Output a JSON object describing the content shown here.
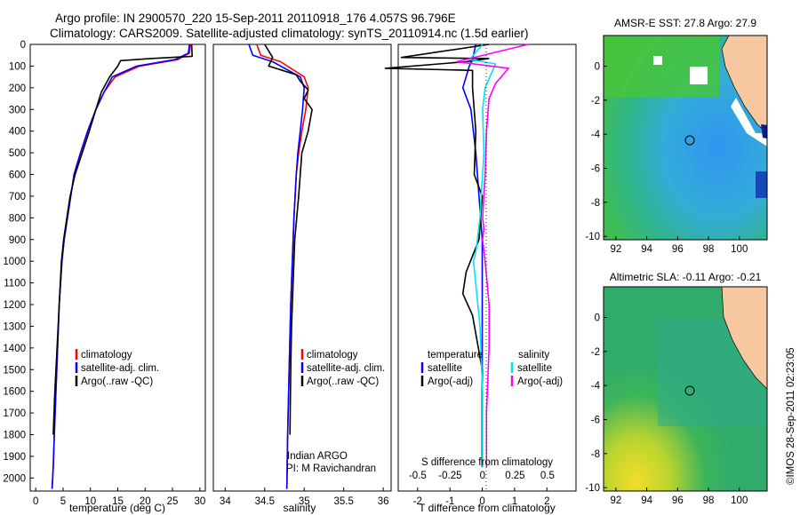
{
  "header": {
    "line1": "Argo profile: IN 2900570_220 15-Sep-2011 20110918_176 4.057S 96.796E",
    "line2": "Climatology: CARS2009. Satellite-adjusted climatology: synTS_20110914.nc (1.5d earlier)"
  },
  "colors": {
    "climatology": "#ff0000",
    "satellite": "#0000ff",
    "argo": "#000000",
    "sat_salinity": "#00e5ee",
    "argo_salinity": "#ff00ff",
    "land": "#f7c8a0"
  },
  "stamp": "©IMOS 28-Sep-2011 02:23:05",
  "shared_y": {
    "ticks": [
      "0",
      "100",
      "200",
      "300",
      "400",
      "500",
      "600",
      "700",
      "800",
      "900",
      "1000",
      "1100",
      "1200",
      "1300",
      "1400",
      "1500",
      "1600",
      "1700",
      "1800",
      "1900",
      "2000"
    ]
  },
  "panels": {
    "temperature": {
      "xlabel": "temperature (deg C)",
      "xticks": [
        "0",
        "5",
        "10",
        "15",
        "20",
        "25",
        "30"
      ],
      "legend": [
        "climatology",
        "satellite-adj. clim.",
        "Argo(..raw -QC)"
      ]
    },
    "salinity": {
      "xlabel": "salinity",
      "xticks": [
        "34",
        "34.5",
        "35",
        "35.5",
        "36"
      ],
      "legend": [
        "climatology",
        "satellite-adj. clim.",
        "Argo(..raw -QC)"
      ],
      "note1": "Indian ARGO",
      "note2": "PI: M Ravichandran"
    },
    "difference": {
      "xlabel": "T difference from climatology",
      "xticks": [
        "-2",
        "-1",
        "0",
        "1",
        "2"
      ],
      "top_label": "S difference from climatology",
      "top_ticks": [
        "-0.5",
        "-0.25",
        "0",
        "0.25",
        "0.5"
      ],
      "legend_heads": [
        "temperature",
        "salinity"
      ],
      "legend_left": [
        "satellite",
        "Argo(-adj)"
      ],
      "legend_right": [
        "satellite",
        "Argo(-adj)"
      ]
    },
    "sst_map": {
      "title": "AMSR-E SST: 27.8 Argo: 27.9",
      "xticks": [
        "92",
        "94",
        "96",
        "98",
        "100"
      ],
      "yticks": [
        "0",
        "-2",
        "-4",
        "-6",
        "-8",
        "-10"
      ]
    },
    "sla_map": {
      "title": "Altimetric SLA: -0.11 Argo: -0.21",
      "xticks": [
        "92",
        "94",
        "96",
        "98",
        "100"
      ],
      "yticks": [
        "0",
        "-2",
        "-4",
        "-6",
        "-8",
        "-10"
      ]
    }
  },
  "chart_data": [
    {
      "type": "line",
      "xlabel": "temperature (deg C)",
      "ylabel": "",
      "xlim": [
        -1,
        31
      ],
      "ylim": [
        2060,
        0
      ],
      "y_reversed": true,
      "series": [
        {
          "name": "climatology",
          "x": [
            28.3,
            28.1,
            26,
            19,
            14.5,
            12.5,
            11,
            9.5,
            8.2,
            7,
            6.4,
            5.8,
            5.2,
            4.8,
            4.3,
            4,
            3.7,
            3.4,
            3.2,
            3
          ],
          "y": [
            0,
            40,
            70,
            100,
            150,
            220,
            300,
            400,
            500,
            600,
            700,
            800,
            900,
            1000,
            1200,
            1400,
            1600,
            1800,
            1950,
            2050
          ]
        },
        {
          "name": "satellite-adj. clim.",
          "x": [
            28.1,
            27.9,
            25.5,
            18.5,
            14,
            12.5,
            11,
            9.5,
            8.2,
            7,
            6.4,
            5.8,
            5.2,
            4.8,
            4.3,
            4,
            3.7,
            3.4,
            3.2,
            3
          ],
          "y": [
            0,
            40,
            70,
            100,
            150,
            220,
            300,
            400,
            500,
            600,
            700,
            800,
            900,
            1000,
            1200,
            1400,
            1600,
            1800,
            1950,
            2050
          ]
        },
        {
          "name": "Argo(..raw -QC)",
          "x": [
            28.5,
            28.6,
            21,
            15.5,
            15,
            13.5,
            12,
            11,
            9.8,
            8.5,
            7.2,
            6.3,
            5.7,
            5.1,
            4.7,
            4.3,
            3.9,
            3.5,
            3.2
          ],
          "y": [
            0,
            55,
            65,
            75,
            100,
            150,
            220,
            300,
            400,
            500,
            600,
            700,
            800,
            900,
            1000,
            1200,
            1400,
            1600,
            1800
          ]
        }
      ]
    },
    {
      "type": "line",
      "xlabel": "salinity",
      "ylabel": "",
      "xlim": [
        33.85,
        36.1
      ],
      "ylim": [
        2060,
        0
      ],
      "y_reversed": true,
      "series": [
        {
          "name": "climatology",
          "x": [
            34.4,
            34.45,
            34.7,
            35,
            35.05,
            35.02,
            34.97,
            34.93,
            34.9,
            34.87,
            34.85,
            34.83,
            34.81,
            34.79,
            34.78
          ],
          "y": [
            0,
            50,
            80,
            150,
            200,
            300,
            400,
            500,
            600,
            800,
            1000,
            1200,
            1500,
            1800,
            2050
          ]
        },
        {
          "name": "satellite-adj. clim.",
          "x": [
            34.3,
            34.35,
            34.6,
            34.95,
            35,
            34.98,
            34.95,
            34.92,
            34.9,
            34.87,
            34.85,
            34.83,
            34.81,
            34.79,
            34.78
          ],
          "y": [
            0,
            50,
            80,
            150,
            200,
            300,
            400,
            500,
            600,
            800,
            1000,
            1200,
            1500,
            1800,
            2050
          ]
        },
        {
          "name": "Argo(..raw -QC)",
          "x": [
            34.5,
            34.6,
            34.55,
            34.9,
            34.95,
            35.05,
            35,
            35.1,
            35.05,
            34.97,
            34.93,
            34.88,
            34.86,
            34.84,
            34.83,
            34.82
          ],
          "y": [
            0,
            60,
            100,
            140,
            170,
            210,
            250,
            300,
            400,
            500,
            700,
            900,
            1100,
            1300,
            1500,
            1800
          ]
        }
      ]
    },
    {
      "type": "line",
      "xlabel": "T difference from climatology",
      "ylabel": "",
      "xlim": [
        -2.6,
        2.9
      ],
      "ylim": [
        2060,
        0
      ],
      "y_reversed": true,
      "series": [
        {
          "name": "temperature satellite",
          "x": [
            -0.2,
            -0.3,
            -0.4,
            -0.6,
            -0.35,
            -0.2,
            -0.1,
            0,
            0,
            0,
            0
          ],
          "y": [
            0,
            70,
            100,
            200,
            300,
            500,
            700,
            900,
            1200,
            1600,
            1950
          ]
        },
        {
          "name": "temperature Argo(-adj)",
          "x": [
            0.2,
            -2.5,
            0.2,
            -0.5,
            -3,
            -0.3,
            -0.3,
            -0.2,
            -0.25,
            0,
            -0.1,
            -0.5,
            -0.6,
            -0.3,
            0,
            0
          ],
          "y": [
            0,
            60,
            65,
            80,
            110,
            120,
            200,
            400,
            600,
            700,
            900,
            1050,
            1150,
            1250,
            1500,
            1950
          ]
        }
      ]
    },
    {
      "type": "line",
      "xlabel": "S difference from climatology",
      "ylabel": "",
      "xlim": [
        -0.65,
        0.72
      ],
      "ylim": [
        2060,
        0
      ],
      "y_reversed": true,
      "series": [
        {
          "name": "salinity satellite",
          "x": [
            0,
            -0.1,
            0.1,
            0.02,
            0,
            0.01,
            -0.01,
            -0.02,
            -0.05,
            -0.07,
            -0.02,
            0,
            0
          ],
          "y": [
            0,
            70,
            90,
            200,
            300,
            500,
            700,
            800,
            950,
            1000,
            1300,
            1600,
            1950
          ]
        },
        {
          "name": "salinity Argo(-adj)",
          "x": [
            0.35,
            -0.2,
            0.2,
            0.1,
            0.05,
            0.03,
            0.02,
            0,
            0.01,
            0,
            0.02,
            0.05,
            0.05,
            0.03,
            0.03
          ],
          "y": [
            0,
            80,
            110,
            180,
            250,
            400,
            600,
            800,
            850,
            900,
            1000,
            1200,
            1400,
            1700,
            1950
          ]
        }
      ]
    },
    {
      "type": "heatmap",
      "title": "AMSR-E SST: 27.8 Argo: 27.9",
      "xlim": [
        91.2,
        101.8
      ],
      "ylim": [
        -10.2,
        1.8
      ],
      "argo_position": {
        "lon": 96.796,
        "lat": -4.057
      },
      "colormap": [
        "#90ee50",
        "#40c840",
        "#28b488",
        "#30a8d0",
        "#2890f0",
        "#0850e0",
        "#0000a8"
      ]
    },
    {
      "type": "heatmap",
      "title": "Altimetric SLA: -0.11 Argo: -0.21",
      "xlim": [
        91.2,
        101.8
      ],
      "ylim": [
        -10.2,
        1.8
      ],
      "argo_position": {
        "lon": 96.796,
        "lat": -4.057
      },
      "colormap": [
        "#30a8b8",
        "#30b070",
        "#40b840",
        "#88c830",
        "#c8d830",
        "#f0e020"
      ]
    }
  ]
}
